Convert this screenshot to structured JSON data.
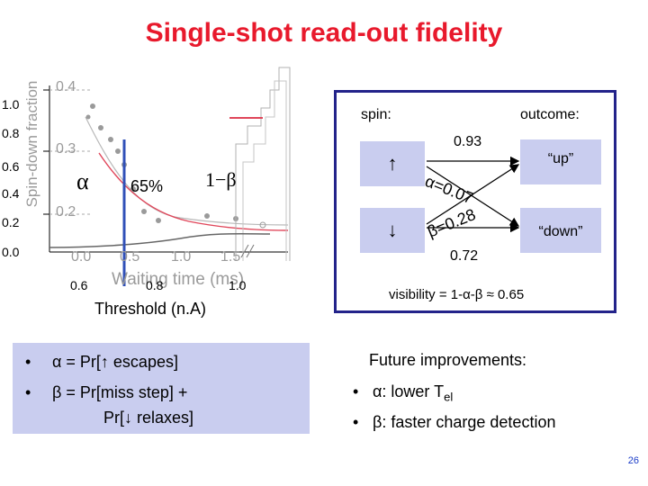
{
  "title": "Single-shot read-out fidelity",
  "plot": {
    "y_ticks": [
      "1.0",
      "0.8",
      "0.6",
      "0.4",
      "0.2",
      "0.0"
    ],
    "x_ticks": [
      "0.6",
      "0.8",
      "1.0"
    ],
    "x_label": "Threshold (n.A)",
    "inset_y_label": "Spin-down fraction",
    "inset_y_ticks": [
      "0.4",
      "0.3",
      "0.2"
    ],
    "inset_x_ticks": [
      "0.0",
      "0.5",
      "1.0",
      "1.5"
    ],
    "inset_x_label": "Waiting time (ms)",
    "alpha": "α",
    "one_minus_beta": "1−β",
    "percent": "65%"
  },
  "panel": {
    "spin_label": "spin:",
    "outcome_label": "outcome:",
    "up_arrow": "↑",
    "down_arrow": "↓",
    "up_outcome": "“up”",
    "down_outcome": "“down”",
    "p_upup": "0.93",
    "p_downdown": "0.72",
    "alpha_value": "α=0.07",
    "beta_value": "β=0.28",
    "visibility": "visibility = 1-α-β ≈ 0.65"
  },
  "left_bullets": {
    "b1": "α = Pr[↑ escapes]",
    "b2a": "β = Pr[miss step] +",
    "b2b": "Pr[↓ relaxes]"
  },
  "right_bullets": {
    "heading": "Future improvements:",
    "b1_prefix": "α: lower T",
    "b1_sub": "el",
    "b2": "β: faster charge detection"
  },
  "page_number": "26",
  "colors": {
    "title": "#e8192c",
    "box": "#c9cdef",
    "panel_border": "#23238a",
    "threshold_line": "#3050b8"
  }
}
